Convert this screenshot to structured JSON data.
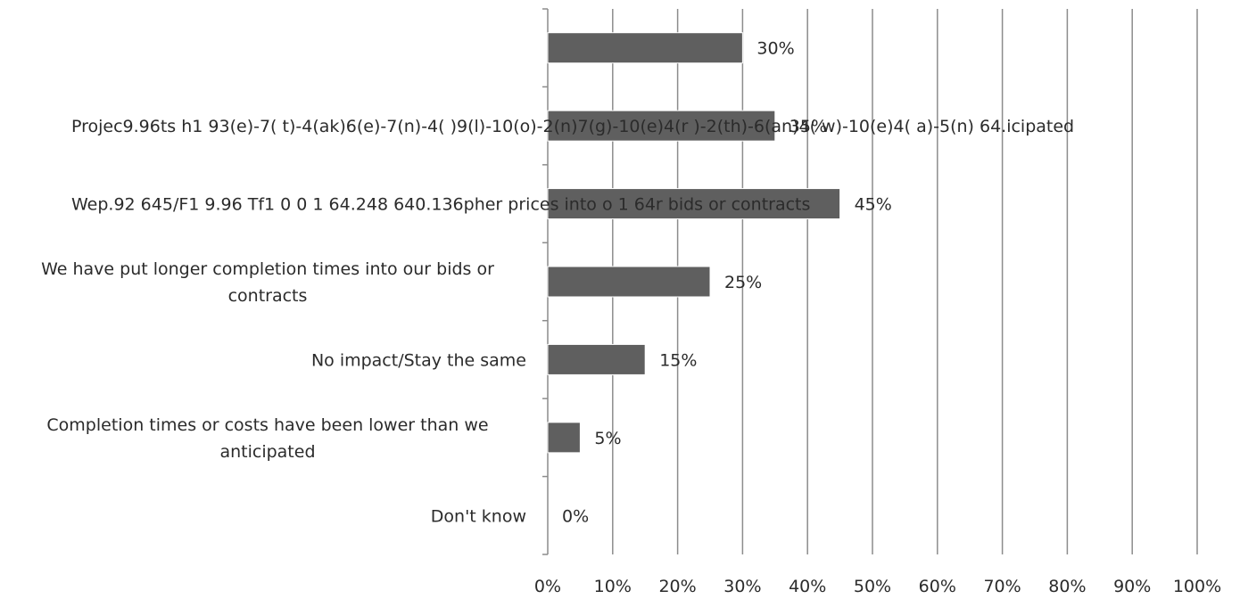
{
  "chart_data": {
    "type": "bar",
    "orientation": "horizontal",
    "categories": [
      "",
      "Projec9.96ts h1 93(e)-7( t)-4(ak)6(e)-7(n)-4( )9(l)-10(o)-2(n)7(g)-10(e)4(r )-2(th)-6(an)4( w)-10(e)4( a)-5(n) 64.icipated",
      "Wep.92 645/F1 9.96 Tf1 0 0 1 64.248 640.136pher prices into o 1 64r bids or contracts",
      "We have put longer completion times into our bids or contracts",
      "No impact/Stay the same",
      "Completion times or costs have been lower than we anticipated",
      "Don't know"
    ],
    "values": [
      30,
      35,
      45,
      25,
      15,
      5,
      0
    ],
    "data_labels": [
      "30%",
      "35%",
      "45%",
      "25%",
      "15%",
      "5%",
      "0%"
    ],
    "xlim": [
      0,
      100
    ],
    "x_ticks": [
      "0%",
      "10%",
      "20%",
      "30%",
      "40%",
      "50%",
      "60%",
      "70%",
      "80%",
      "90%",
      "100%"
    ],
    "grid": "vertical",
    "bar_color": "#5f5f5f",
    "grid_color": "#8c8c8c"
  }
}
